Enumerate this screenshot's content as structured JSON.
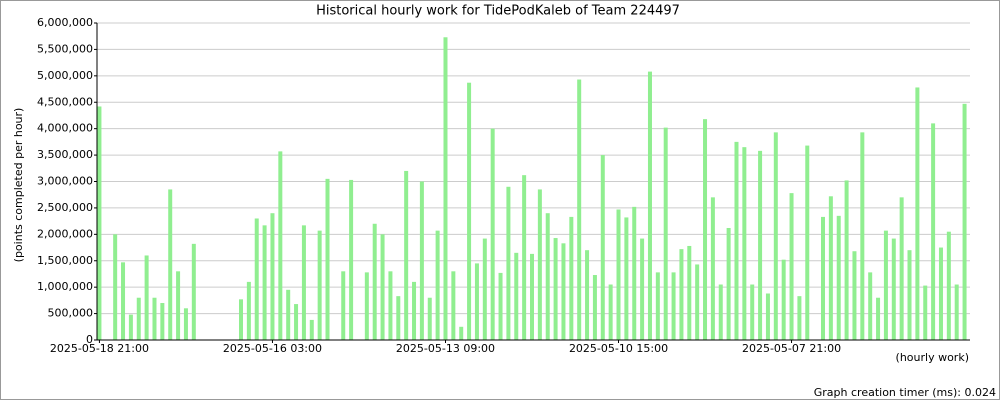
{
  "chart_data": {
    "type": "bar",
    "title": "Historical hourly work for TidePodKaleb of Team 224497",
    "y_label": "(points completed per hour)",
    "x_label": "(hourly work)",
    "footer": "Graph creation timer (ms): 0.024",
    "color": "#90ee90",
    "grid": true,
    "ylim": [
      0,
      6000000
    ],
    "yticks": [
      {
        "value": 0,
        "label": "0"
      },
      {
        "value": 500000,
        "label": "500,000"
      },
      {
        "value": 1000000,
        "label": "1,000,000"
      },
      {
        "value": 1500000,
        "label": "1,500,000"
      },
      {
        "value": 2000000,
        "label": "2,000,000"
      },
      {
        "value": 2500000,
        "label": "2,500,000"
      },
      {
        "value": 3000000,
        "label": "3,000,000"
      },
      {
        "value": 3500000,
        "label": "3,500,000"
      },
      {
        "value": 4000000,
        "label": "4,000,000"
      },
      {
        "value": 4500000,
        "label": "4,500,000"
      },
      {
        "value": 5000000,
        "label": "5,000,000"
      },
      {
        "value": 5500000,
        "label": "5,500,000"
      },
      {
        "value": 6000000,
        "label": "6,000,000"
      }
    ],
    "categories": [
      "2025-05-18 21:00",
      null,
      null,
      null,
      null,
      null,
      null,
      null,
      null,
      null,
      null,
      null,
      null,
      null,
      null,
      null,
      null,
      null,
      null,
      null,
      null,
      null,
      "2025-05-16 03:00",
      null,
      null,
      null,
      null,
      null,
      null,
      null,
      null,
      null,
      null,
      null,
      null,
      null,
      null,
      null,
      null,
      null,
      null,
      null,
      null,
      null,
      "2025-05-13 09:00",
      null,
      null,
      null,
      null,
      null,
      null,
      null,
      null,
      null,
      null,
      null,
      null,
      null,
      null,
      null,
      null,
      null,
      null,
      null,
      null,
      null,
      "2025-05-10 15:00",
      null,
      null,
      null,
      null,
      null,
      null,
      null,
      null,
      null,
      null,
      null,
      null,
      null,
      null,
      null,
      null,
      null,
      null,
      null,
      null,
      null,
      "2025-05-07 21:00",
      null,
      null,
      null,
      null,
      null,
      null,
      null,
      null,
      null,
      null,
      null,
      null,
      null,
      null,
      null,
      null,
      null,
      null,
      null,
      null,
      null,
      null
    ],
    "values": [
      4420000,
      0,
      2000000,
      1470000,
      480000,
      800000,
      1600000,
      800000,
      700000,
      2850000,
      1300000,
      600000,
      1820000,
      0,
      0,
      0,
      0,
      0,
      770000,
      1100000,
      2300000,
      2170000,
      2400000,
      3570000,
      950000,
      680000,
      2170000,
      380000,
      2070000,
      3050000,
      0,
      1300000,
      3030000,
      0,
      1280000,
      2200000,
      2000000,
      1300000,
      830000,
      3200000,
      1100000,
      3000000,
      800000,
      2070000,
      5730000,
      1300000,
      250000,
      4870000,
      1450000,
      1920000,
      4000000,
      1270000,
      2900000,
      1650000,
      3120000,
      1630000,
      2850000,
      2400000,
      1930000,
      1830000,
      2330000,
      4930000,
      1700000,
      1230000,
      3500000,
      1050000,
      2470000,
      2320000,
      2520000,
      1920000,
      5080000,
      1280000,
      4020000,
      1280000,
      1720000,
      1780000,
      1430000,
      4180000,
      2700000,
      1050000,
      2120000,
      3750000,
      3650000,
      1050000,
      3580000,
      880000,
      3930000,
      1520000,
      2780000,
      830000,
      3680000,
      0,
      2330000,
      2720000,
      2350000,
      3020000,
      1680000,
      3930000,
      1280000,
      800000,
      2070000,
      1920000,
      2700000,
      1700000,
      4780000,
      1030000,
      4100000,
      1750000,
      2050000,
      1050000,
      4470000
    ]
  }
}
